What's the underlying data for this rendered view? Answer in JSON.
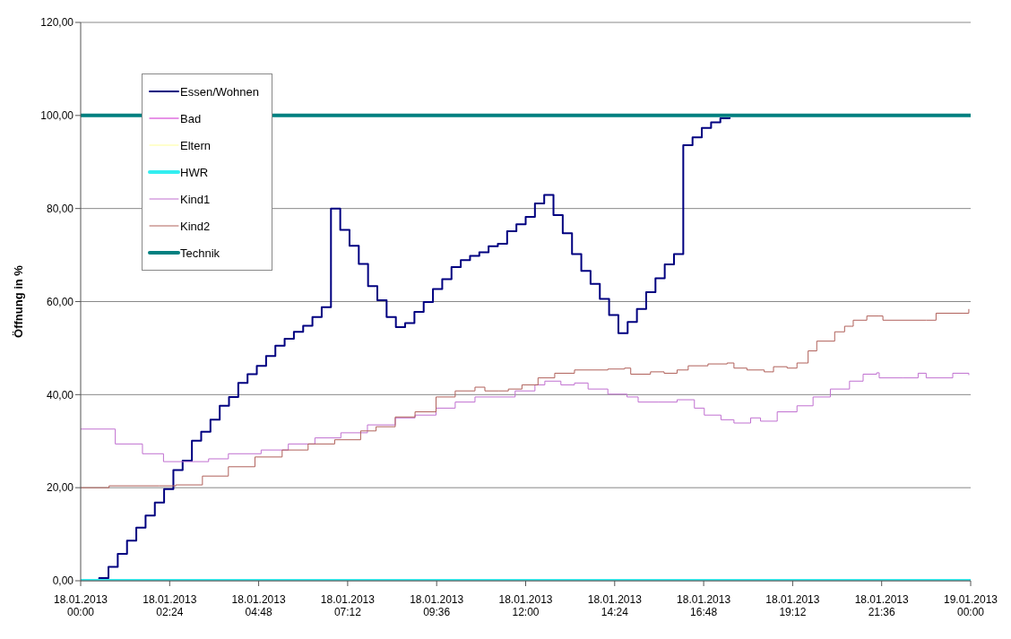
{
  "chart_data": {
    "type": "step",
    "ylabel": "Öffnung in %",
    "legend": "top left",
    "grid": "y",
    "xlim": [
      "2013-01-18T00:00",
      "2013-01-19T00:00"
    ],
    "ylim": [
      0,
      120
    ],
    "xticks": [
      {
        "value": "2013-01-18T00:00",
        "label": "18.01.2013\n00:00"
      },
      {
        "value": "2013-01-18T02:24",
        "label": "18.01.2013\n02:24"
      },
      {
        "value": "2013-01-18T04:48",
        "label": "18.01.2013\n04:48"
      },
      {
        "value": "2013-01-18T07:12",
        "label": "18.01.2013\n07:12"
      },
      {
        "value": "2013-01-18T09:36",
        "label": "18.01.2013\n09:36"
      },
      {
        "value": "2013-01-18T12:00",
        "label": "18.01.2013\n12:00"
      },
      {
        "value": "2013-01-18T14:24",
        "label": "18.01.2013\n14:24"
      },
      {
        "value": "2013-01-18T16:48",
        "label": "18.01.2013\n16:48"
      },
      {
        "value": "2013-01-18T19:12",
        "label": "18.01.2013\n19:12"
      },
      {
        "value": "2013-01-18T21:36",
        "label": "18.01.2013\n21:36"
      },
      {
        "value": "2013-01-19T00:00",
        "label": "19.01.2013\n00:00"
      }
    ],
    "yticks": [
      {
        "value": 0,
        "label": "0,00"
      },
      {
        "value": 20,
        "label": "20,00"
      },
      {
        "value": 40,
        "label": "40,00"
      },
      {
        "value": 60,
        "label": "60,00"
      },
      {
        "value": 80,
        "label": "80,00"
      },
      {
        "value": 100,
        "label": "100,00"
      },
      {
        "value": 120,
        "label": "120,00"
      }
    ],
    "series": [
      {
        "name": "Essen/Wohnen",
        "color": "#000080",
        "x": [
          "2013-01-18T00:00",
          "2013-01-18T00:30",
          "2013-01-18T00:45",
          "2013-01-18T01:00",
          "2013-01-18T01:15",
          "2013-01-18T01:30",
          "2013-01-18T01:45",
          "2013-01-18T02:00",
          "2013-01-18T02:15",
          "2013-01-18T02:30",
          "2013-01-18T02:45",
          "2013-01-18T03:00",
          "2013-01-18T03:15",
          "2013-01-18T03:30",
          "2013-01-18T03:45",
          "2013-01-18T04:00",
          "2013-01-18T04:15",
          "2013-01-18T04:30",
          "2013-01-18T04:45",
          "2013-01-18T05:00",
          "2013-01-18T05:15",
          "2013-01-18T05:30",
          "2013-01-18T05:45",
          "2013-01-18T06:00",
          "2013-01-18T06:15",
          "2013-01-18T06:30",
          "2013-01-18T06:45",
          "2013-01-18T07:00",
          "2013-01-18T07:15",
          "2013-01-18T07:30",
          "2013-01-18T07:45",
          "2013-01-18T08:00",
          "2013-01-18T08:15",
          "2013-01-18T08:30",
          "2013-01-18T08:45",
          "2013-01-18T09:00",
          "2013-01-18T09:15",
          "2013-01-18T09:30",
          "2013-01-18T09:45",
          "2013-01-18T10:00",
          "2013-01-18T10:15",
          "2013-01-18T10:30",
          "2013-01-18T10:45",
          "2013-01-18T11:00",
          "2013-01-18T11:15",
          "2013-01-18T11:30",
          "2013-01-18T11:45",
          "2013-01-18T12:00",
          "2013-01-18T12:15",
          "2013-01-18T12:30",
          "2013-01-18T12:45",
          "2013-01-18T13:00",
          "2013-01-18T13:15",
          "2013-01-18T13:30",
          "2013-01-18T13:45",
          "2013-01-18T14:00",
          "2013-01-18T14:15",
          "2013-01-18T14:30",
          "2013-01-18T14:45",
          "2013-01-18T15:00",
          "2013-01-18T15:15",
          "2013-01-18T15:30",
          "2013-01-18T15:45",
          "2013-01-18T16:00",
          "2013-01-18T16:15",
          "2013-01-18T16:30",
          "2013-01-18T16:45",
          "2013-01-18T17:00",
          "2013-01-18T17:15",
          "2013-01-18T17:30"
        ],
        "values": [
          0,
          0.6,
          3,
          5.8,
          8.6,
          11.4,
          14,
          16.8,
          19.7,
          23.8,
          25.8,
          30.1,
          32,
          34.6,
          37.6,
          39.5,
          42.5,
          44.4,
          46.2,
          48.3,
          50.5,
          52,
          53.5,
          54.8,
          56.7,
          58.8,
          80,
          75.4,
          72,
          68.1,
          63.3,
          60.3,
          56.7,
          54.5,
          55.4,
          57.8,
          59.9,
          62.7,
          64.8,
          67.4,
          68.9,
          69.8,
          70.6,
          71.9,
          72.4,
          75.1,
          76.6,
          78.2,
          81.1,
          82.9,
          78.6,
          74.7,
          70.2,
          66.6,
          63.8,
          60.6,
          57.1,
          53.2,
          55.6,
          58.4,
          62,
          65,
          68,
          70.2,
          93.6,
          95.3,
          97.3,
          98.5,
          99.4,
          99.6
        ]
      },
      {
        "name": "Bad",
        "color": "#e070e0"
      },
      {
        "name": "Eltern",
        "color": "#ffff99"
      },
      {
        "name": "HWR",
        "color": "#33eef0",
        "x": [
          "2013-01-18T00:00",
          "2013-01-19T00:00"
        ],
        "values": [
          0,
          0
        ]
      },
      {
        "name": "Kind1",
        "color": "#c070d0",
        "x": [
          "2013-01-18T00:00",
          "2013-01-18T00:56",
          "2013-01-18T01:40",
          "2013-01-18T02:14",
          "2013-01-18T03:27",
          "2013-01-18T03:59",
          "2013-01-18T04:52",
          "2013-01-18T05:36",
          "2013-01-18T06:19",
          "2013-01-18T07:01",
          "2013-01-18T07:44",
          "2013-01-18T08:29",
          "2013-01-18T09:01",
          "2013-01-18T09:35",
          "2013-01-18T10:06",
          "2013-01-18T10:38",
          "2013-01-18T11:10",
          "2013-01-18T11:43",
          "2013-01-18T12:15",
          "2013-01-18T12:31",
          "2013-01-18T12:57",
          "2013-01-18T13:19",
          "2013-01-18T13:41",
          "2013-01-18T14:13",
          "2013-01-18T14:44",
          "2013-01-18T15:02",
          "2013-01-18T15:34",
          "2013-01-18T16:05",
          "2013-01-18T16:33",
          "2013-01-18T16:49",
          "2013-01-18T17:16",
          "2013-01-18T17:37",
          "2013-01-18T18:04",
          "2013-01-18T18:20",
          "2013-01-18T18:47",
          "2013-01-18T19:19",
          "2013-01-18T19:45",
          "2013-01-18T20:13",
          "2013-01-18T20:44",
          "2013-01-18T21:06",
          "2013-01-18T21:28",
          "2013-01-18T21:32",
          "2013-01-18T22:10",
          "2013-01-18T22:35",
          "2013-01-18T22:48",
          "2013-01-18T23:31",
          "2013-01-18T23:57"
        ],
        "values": [
          32.6,
          29.4,
          27.3,
          25.6,
          26.2,
          27.3,
          28.1,
          29.4,
          30.7,
          31.8,
          33.5,
          35,
          35.6,
          37.1,
          38.4,
          39.5,
          39.5,
          40.8,
          42.1,
          42.9,
          42.1,
          42.5,
          41.2,
          40.1,
          39.5,
          38.4,
          38.4,
          38.9,
          37.1,
          35.6,
          34.6,
          33.9,
          35,
          34.3,
          36.3,
          37.6,
          39.5,
          41.2,
          42.9,
          44.4,
          44.7,
          43.6,
          43.6,
          44.6,
          43.6,
          44.6,
          44.2
        ]
      },
      {
        "name": "Kind2",
        "color": "#b0605a",
        "x": [
          "2013-01-18T00:00",
          "2013-01-18T00:46",
          "2013-01-18T02:07",
          "2013-01-18T02:34",
          "2013-01-18T03:17",
          "2013-01-18T03:59",
          "2013-01-18T04:42",
          "2013-01-18T05:26",
          "2013-01-18T06:08",
          "2013-01-18T06:51",
          "2013-01-18T07:33",
          "2013-01-18T07:58",
          "2013-01-18T08:29",
          "2013-01-18T09:01",
          "2013-01-18T09:35",
          "2013-01-18T10:06",
          "2013-01-18T10:38",
          "2013-01-18T10:54",
          "2013-01-18T11:16",
          "2013-01-18T11:32",
          "2013-01-18T11:54",
          "2013-01-18T12:20",
          "2013-01-18T12:47",
          "2013-01-18T13:19",
          "2013-01-18T14:13",
          "2013-01-18T14:40",
          "2013-01-18T14:50",
          "2013-01-18T15:22",
          "2013-01-18T15:44",
          "2013-01-18T16:05",
          "2013-01-18T16:23",
          "2013-01-18T16:55",
          "2013-01-18T17:26",
          "2013-01-18T17:37",
          "2013-01-18T17:58",
          "2013-01-18T18:26",
          "2013-01-18T18:41",
          "2013-01-18T19:03",
          "2013-01-18T19:19",
          "2013-01-18T19:37",
          "2013-01-18T19:51",
          "2013-01-18T20:20",
          "2013-01-18T20:36",
          "2013-01-18T20:50",
          "2013-01-18T21:12",
          "2013-01-18T21:32",
          "2013-01-18T21:38",
          "2013-01-18T22:48",
          "2013-01-18T23:04",
          "2013-01-18T23:47",
          "2013-01-18T23:57"
        ],
        "values": [
          20,
          20.4,
          20.4,
          20.6,
          22.5,
          24.5,
          26.6,
          28.1,
          29.4,
          30.3,
          32.2,
          33.1,
          35.2,
          36.3,
          39.5,
          40.8,
          41.6,
          40.8,
          40.8,
          41.2,
          42.1,
          43.6,
          44.6,
          45.3,
          45.5,
          45.7,
          44.4,
          44.9,
          44.6,
          45.3,
          46.2,
          46.6,
          46.8,
          45.7,
          45.3,
          44.9,
          46,
          45.7,
          46.8,
          49.4,
          51.5,
          53.5,
          54.7,
          56,
          56.9,
          56.9,
          56,
          56,
          57.5,
          57.5,
          58.4
        ]
      },
      {
        "name": "Technik",
        "color": "#008080",
        "x": [
          "2013-01-18T00:00",
          "2013-01-19T00:00"
        ],
        "values": [
          100,
          100
        ]
      }
    ]
  }
}
